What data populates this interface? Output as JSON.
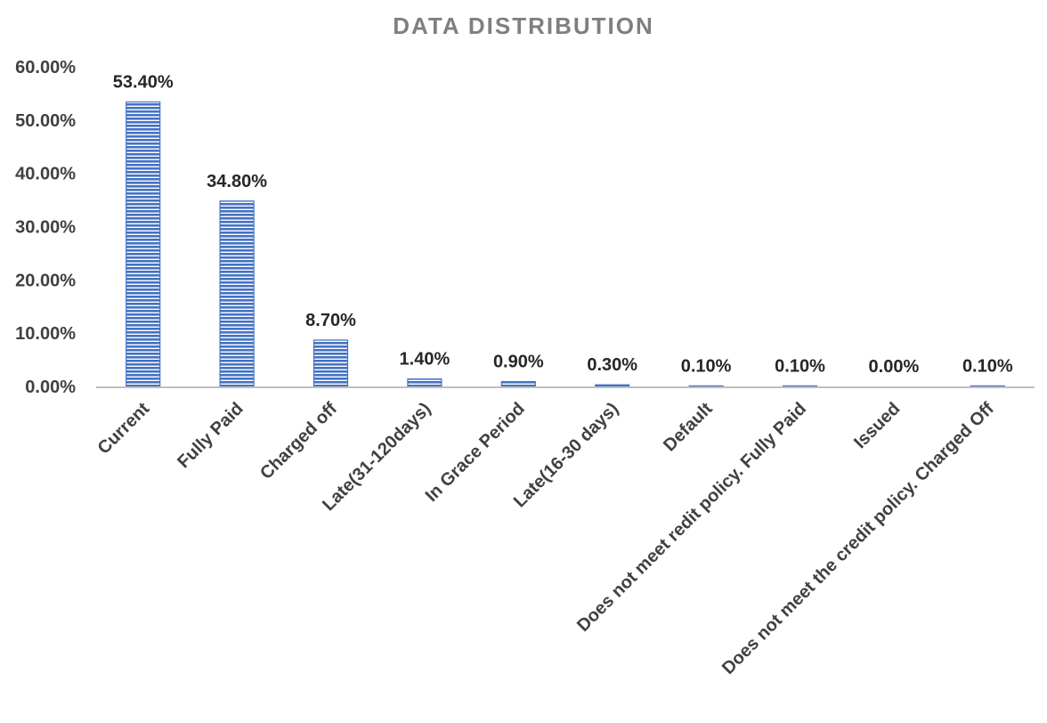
{
  "chart_data": {
    "type": "bar",
    "title": "DATA DISTRIBUTION",
    "xlabel": "",
    "ylabel": "",
    "categories": [
      "Current",
      "Fully Paid",
      "Charged off",
      "Late(31-120days)",
      "In Grace Period",
      "Late(16-30 days)",
      "Default",
      "Does not meet redit policy. Fully Paid",
      "Issued",
      "Does not meet the credit policy. Charged Off"
    ],
    "values": [
      53.4,
      34.8,
      8.7,
      1.4,
      0.9,
      0.3,
      0.1,
      0.1,
      0.0,
      0.1
    ],
    "data_labels": [
      "53.40%",
      "34.80%",
      "8.70%",
      "1.40%",
      "0.90%",
      "0.30%",
      "0.10%",
      "0.10%",
      "0.00%",
      "0.10%"
    ],
    "ylim": [
      0,
      60
    ],
    "yticks": [
      0,
      10,
      20,
      30,
      40,
      50,
      60
    ],
    "ytick_labels": [
      "0.00%",
      "10.00%",
      "20.00%",
      "30.00%",
      "40.00%",
      "50.00%",
      "60.00%"
    ],
    "grid": false,
    "legend": "none",
    "colors": {
      "bar_fill": "#4472c4",
      "bar_stripe": "#ffffff",
      "axis": "#bfbfbf",
      "title": "#7f7f7f",
      "text": "#404040"
    }
  }
}
